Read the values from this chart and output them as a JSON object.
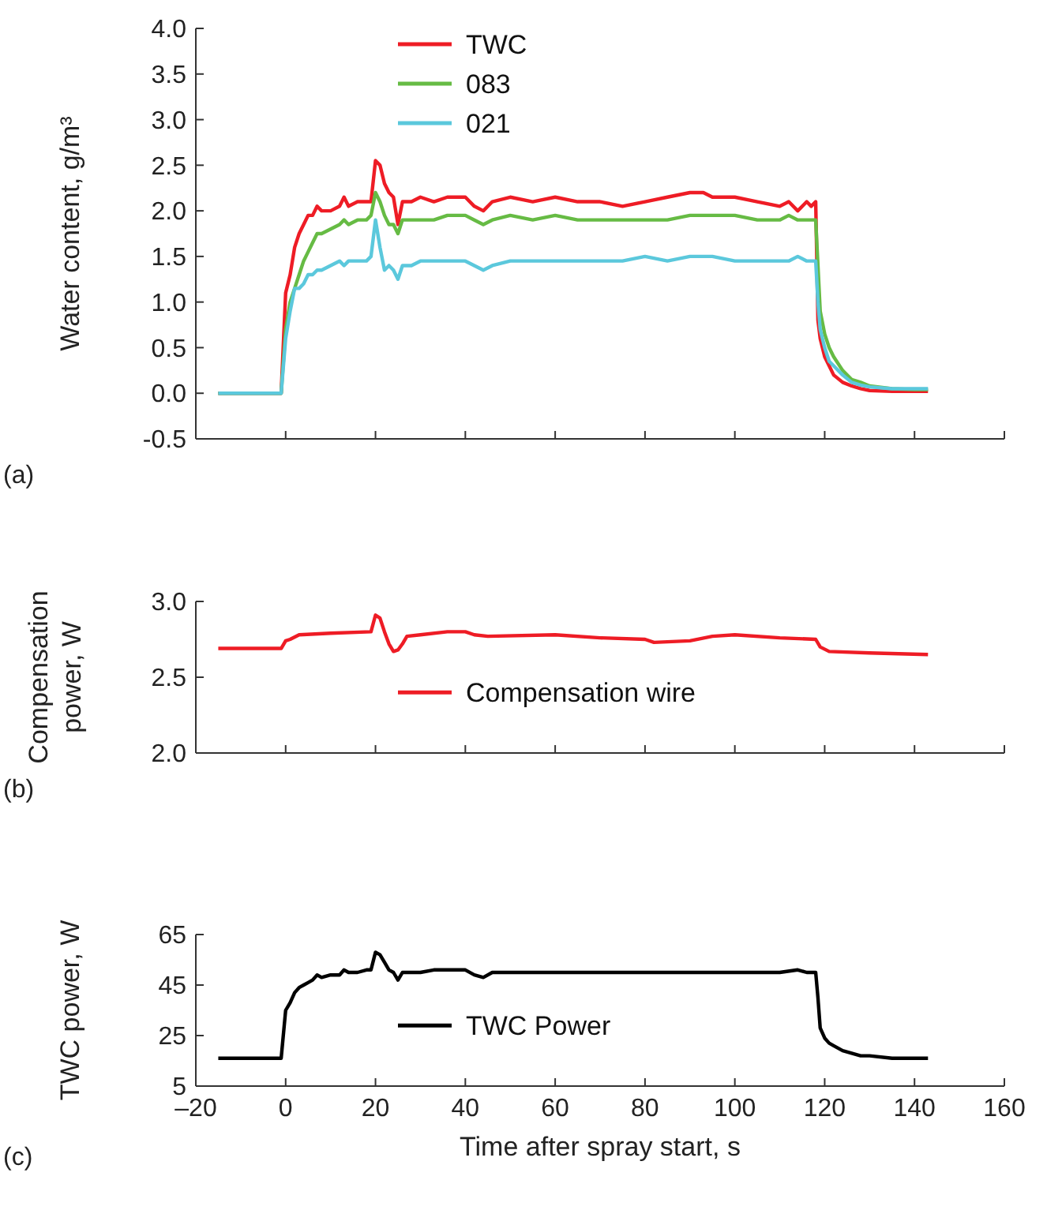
{
  "chart_data": [
    {
      "type": "line",
      "ylabel": "Water content, g/m³",
      "annotations": [
        "(a)"
      ],
      "legend": "top",
      "grid": false,
      "tick_labels": "y",
      "xlim": [
        -20,
        160
      ],
      "xticks": [
        -20,
        0,
        20,
        40,
        60,
        80,
        100,
        120,
        140,
        160
      ],
      "ylim": [
        -0.5,
        4
      ],
      "yticks": [
        {
          "value": -0.5,
          "label": "-0.5"
        },
        {
          "value": 0,
          "label": "0.0"
        },
        {
          "value": 0.5,
          "label": "0.5"
        },
        {
          "value": 1,
          "label": "1.0"
        },
        {
          "value": 1.5,
          "label": "1.5"
        },
        {
          "value": 2,
          "label": "2.0"
        },
        {
          "value": 2.5,
          "label": "2.5"
        },
        {
          "value": 3,
          "label": "3.0"
        },
        {
          "value": 3.5,
          "label": "3.5"
        },
        {
          "value": 4,
          "label": "4.0"
        }
      ],
      "x": [
        -15,
        -1,
        0,
        1,
        2,
        3,
        4,
        5,
        6,
        7,
        8,
        10,
        12,
        13,
        14,
        16,
        18,
        19,
        20,
        21,
        22,
        23,
        24,
        25,
        26,
        28,
        30,
        33,
        36,
        40,
        42,
        44,
        46,
        50,
        55,
        60,
        65,
        70,
        75,
        80,
        85,
        90,
        93,
        95,
        100,
        105,
        110,
        112,
        114,
        116,
        117,
        118,
        118.5,
        119,
        120,
        121,
        122,
        124,
        126,
        128,
        130,
        135,
        140,
        143
      ],
      "series": [
        {
          "name": "TWC",
          "color": "#ee1c25",
          "values": [
            0,
            0,
            1.1,
            1.3,
            1.6,
            1.75,
            1.85,
            1.95,
            1.95,
            2.05,
            2.0,
            2.0,
            2.05,
            2.15,
            2.05,
            2.1,
            2.1,
            2.1,
            2.55,
            2.5,
            2.3,
            2.2,
            2.15,
            1.85,
            2.1,
            2.1,
            2.15,
            2.1,
            2.15,
            2.15,
            2.05,
            2.0,
            2.1,
            2.15,
            2.1,
            2.15,
            2.1,
            2.1,
            2.05,
            2.1,
            2.15,
            2.2,
            2.2,
            2.15,
            2.15,
            2.1,
            2.05,
            2.1,
            2.0,
            2.1,
            2.05,
            2.1,
            0.8,
            0.6,
            0.4,
            0.3,
            0.2,
            0.12,
            0.08,
            0.05,
            0.03,
            0.02,
            0.02,
            0.02
          ]
        },
        {
          "name": "083",
          "color": "#66bb44",
          "values": [
            0,
            0,
            0.7,
            1.0,
            1.15,
            1.3,
            1.45,
            1.55,
            1.65,
            1.75,
            1.75,
            1.8,
            1.85,
            1.9,
            1.85,
            1.9,
            1.9,
            1.95,
            2.2,
            2.1,
            1.95,
            1.85,
            1.85,
            1.75,
            1.9,
            1.9,
            1.9,
            1.9,
            1.95,
            1.95,
            1.9,
            1.85,
            1.9,
            1.95,
            1.9,
            1.95,
            1.9,
            1.9,
            1.9,
            1.9,
            1.9,
            1.95,
            1.95,
            1.95,
            1.95,
            1.9,
            1.9,
            1.95,
            1.9,
            1.9,
            1.9,
            1.9,
            1.4,
            0.9,
            0.65,
            0.5,
            0.4,
            0.25,
            0.15,
            0.12,
            0.08,
            0.05,
            0.04,
            0.04
          ]
        },
        {
          "name": "021",
          "color": "#5bc8dc",
          "values": [
            0,
            0,
            0.6,
            0.9,
            1.15,
            1.15,
            1.2,
            1.3,
            1.3,
            1.35,
            1.35,
            1.4,
            1.45,
            1.4,
            1.45,
            1.45,
            1.45,
            1.5,
            1.9,
            1.6,
            1.35,
            1.4,
            1.35,
            1.25,
            1.4,
            1.4,
            1.45,
            1.45,
            1.45,
            1.45,
            1.4,
            1.35,
            1.4,
            1.45,
            1.45,
            1.45,
            1.45,
            1.45,
            1.45,
            1.5,
            1.45,
            1.5,
            1.5,
            1.5,
            1.45,
            1.45,
            1.45,
            1.45,
            1.5,
            1.45,
            1.45,
            1.45,
            1.0,
            0.7,
            0.5,
            0.35,
            0.3,
            0.2,
            0.12,
            0.09,
            0.07,
            0.05,
            0.05,
            0.05
          ]
        }
      ]
    },
    {
      "type": "line",
      "ylabel": "Compensation power, W",
      "annotations": [
        "(b)"
      ],
      "legend": "bottom",
      "grid": false,
      "tick_labels": "y",
      "xlim": [
        -20,
        160
      ],
      "xticks": [
        -20,
        0,
        20,
        40,
        60,
        80,
        100,
        120,
        140,
        160
      ],
      "ylim": [
        2,
        3
      ],
      "yticks": [
        {
          "value": 2,
          "label": "2.0"
        },
        {
          "value": 2.5,
          "label": "2.5"
        },
        {
          "value": 3,
          "label": "3.0"
        }
      ],
      "x": [
        -15,
        -1,
        0,
        1,
        3,
        10,
        19,
        20,
        21,
        22,
        23,
        24,
        25,
        26,
        27,
        30,
        36,
        40,
        42,
        45,
        60,
        70,
        80,
        82,
        90,
        95,
        100,
        110,
        118,
        119,
        121,
        130,
        143
      ],
      "series": [
        {
          "name": "Compensation wire",
          "color": "#ee1c25",
          "values": [
            2.69,
            2.69,
            2.74,
            2.75,
            2.78,
            2.79,
            2.8,
            2.91,
            2.89,
            2.8,
            2.72,
            2.67,
            2.68,
            2.72,
            2.77,
            2.78,
            2.8,
            2.8,
            2.78,
            2.77,
            2.78,
            2.76,
            2.75,
            2.73,
            2.74,
            2.77,
            2.78,
            2.76,
            2.75,
            2.7,
            2.67,
            2.66,
            2.65
          ]
        }
      ]
    },
    {
      "type": "line",
      "xlabel": "Time after spray start, s",
      "ylabel": "TWC power, W",
      "annotations": [
        "(c)"
      ],
      "legend": "bottom",
      "grid": false,
      "xlim": [
        -20,
        160
      ],
      "xticks": [
        {
          "value": -20,
          "label": "–20"
        },
        0,
        20,
        40,
        60,
        80,
        100,
        120,
        140,
        160
      ],
      "ylim": [
        5,
        65
      ],
      "yticks": [
        5,
        25,
        45,
        65
      ],
      "x": [
        -15,
        -1,
        0,
        1,
        2,
        3,
        4,
        5,
        6,
        7,
        8,
        10,
        12,
        13,
        14,
        16,
        18,
        19,
        20,
        21,
        22,
        23,
        24,
        25,
        26,
        28,
        30,
        33,
        36,
        40,
        42,
        44,
        46,
        50,
        60,
        70,
        80,
        90,
        100,
        110,
        114,
        116,
        118,
        118.5,
        119,
        120,
        121,
        122,
        124,
        126,
        128,
        130,
        135,
        140,
        143
      ],
      "series": [
        {
          "name": "TWC Power",
          "color": "#000000",
          "values": [
            16,
            16,
            35,
            38,
            42,
            44,
            45,
            46,
            47,
            49,
            48,
            49,
            49,
            51,
            50,
            50,
            51,
            51,
            58,
            57,
            54,
            51,
            50,
            47,
            50,
            50,
            50,
            51,
            51,
            51,
            49,
            48,
            50,
            50,
            50,
            50,
            50,
            50,
            50,
            50,
            51,
            50,
            50,
            40,
            28,
            24,
            22,
            21,
            19,
            18,
            17,
            17,
            16,
            16,
            16
          ]
        }
      ]
    }
  ]
}
